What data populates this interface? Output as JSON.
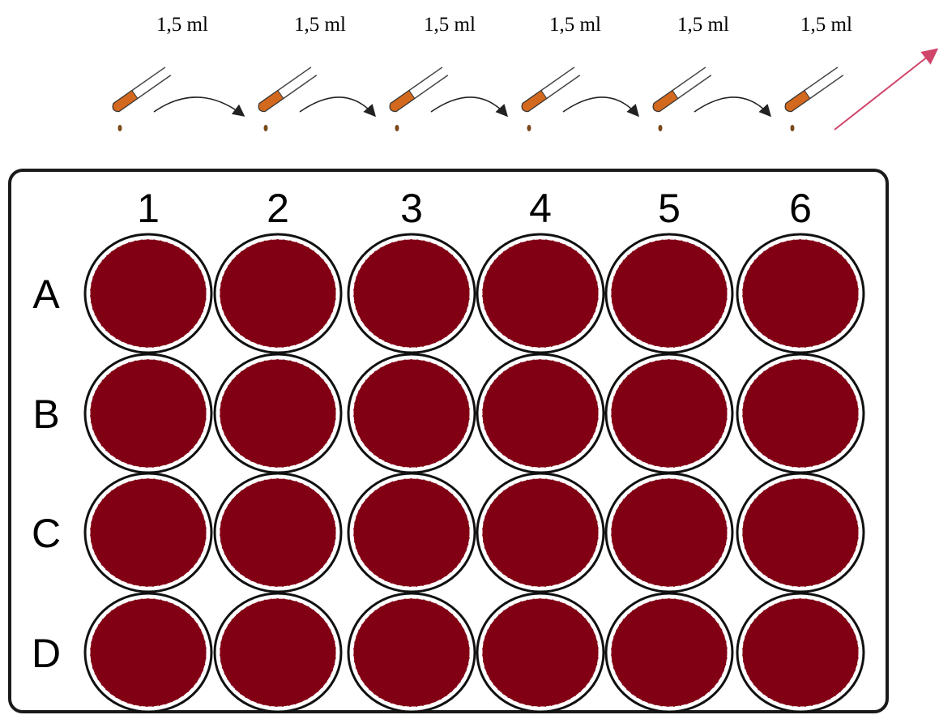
{
  "dilution": {
    "volumes": [
      "1,5 ml",
      "1,5 ml",
      "1,5 ml",
      "1,5 ml",
      "1,5 ml",
      "1,5 ml"
    ]
  },
  "plate": {
    "columns": [
      "1",
      "2",
      "3",
      "4",
      "5",
      "6"
    ],
    "rows": [
      "A",
      "B",
      "C",
      "D"
    ]
  }
}
